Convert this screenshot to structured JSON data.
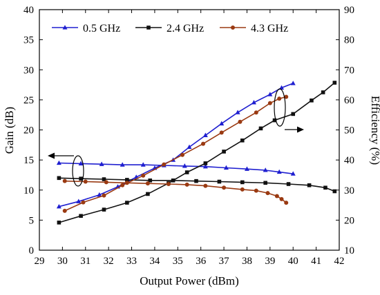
{
  "chart_data": {
    "type": "line",
    "xlabel": "Output Power (dBm)",
    "ylabel_left": "Gain (dB)",
    "ylabel_right": "Efficiency (%)",
    "xlim": [
      29,
      42
    ],
    "ylim_left": [
      0,
      40
    ],
    "ylim_right": [
      10,
      90
    ],
    "x_ticks": [
      "29",
      "30",
      "31",
      "32",
      "33",
      "34",
      "35",
      "36",
      "37",
      "38",
      "39",
      "40",
      "41",
      "42"
    ],
    "y_ticks_left": [
      "0",
      "5",
      "10",
      "15",
      "20",
      "25",
      "30",
      "35",
      "40"
    ],
    "y_ticks_right": [
      "10",
      "20",
      "30",
      "40",
      "50",
      "60",
      "70",
      "80",
      "90"
    ],
    "legend_position": "top",
    "grid": false,
    "series": [
      {
        "name": "0.5 GHz",
        "metric": "gain",
        "axis": "left",
        "color": "#1f1fd0",
        "marker": "triangle",
        "x": [
          29.85,
          30.8,
          31.7,
          32.6,
          33.5,
          34.4,
          35.3,
          36.2,
          37.1,
          38.0,
          38.8,
          39.4,
          40.0
        ],
        "y": [
          14.5,
          14.4,
          14.3,
          14.2,
          14.2,
          14.1,
          14.0,
          13.9,
          13.7,
          13.5,
          13.3,
          13.0,
          12.7
        ]
      },
      {
        "name": "0.5 GHz",
        "metric": "efficiency",
        "axis": "right",
        "color": "#1f1fd0",
        "marker": "triangle",
        "x": [
          29.85,
          30.7,
          31.6,
          32.4,
          33.2,
          34.0,
          34.8,
          35.5,
          36.2,
          36.9,
          37.6,
          38.3,
          39.0,
          39.5,
          40.0
        ],
        "y": [
          24.5,
          26.2,
          28.4,
          31.1,
          34.3,
          37.3,
          40.0,
          44.3,
          48.2,
          52.1,
          55.8,
          59.1,
          61.8,
          64.0,
          65.5
        ]
      },
      {
        "name": "2.4 GHz",
        "metric": "gain",
        "axis": "left",
        "color": "#111111",
        "marker": "square",
        "x": [
          29.85,
          30.8,
          31.8,
          32.8,
          33.8,
          34.8,
          35.8,
          36.8,
          37.8,
          38.8,
          39.8,
          40.7,
          41.4,
          41.8
        ],
        "y": [
          12.0,
          11.9,
          11.8,
          11.7,
          11.6,
          11.6,
          11.5,
          11.4,
          11.3,
          11.2,
          11.0,
          10.8,
          10.4,
          9.8
        ]
      },
      {
        "name": "2.4 GHz",
        "metric": "efficiency",
        "axis": "right",
        "color": "#111111",
        "marker": "square",
        "x": [
          29.85,
          30.8,
          31.8,
          32.8,
          33.7,
          34.6,
          35.4,
          36.2,
          37.0,
          37.8,
          38.6,
          39.2,
          40.0,
          40.8,
          41.3,
          41.8
        ],
        "y": [
          19.2,
          21.4,
          23.5,
          25.8,
          28.7,
          32.3,
          35.9,
          38.9,
          42.8,
          46.5,
          50.5,
          53.2,
          55.3,
          59.8,
          62.5,
          65.7
        ]
      },
      {
        "name": "4.3 GHz",
        "metric": "gain",
        "axis": "left",
        "color": "#9a3a12",
        "marker": "circle",
        "x": [
          30.1,
          31.0,
          31.9,
          32.8,
          33.7,
          34.6,
          35.4,
          36.2,
          37.0,
          37.8,
          38.4,
          38.9,
          39.3,
          39.5,
          39.7
        ],
        "y": [
          11.5,
          11.4,
          11.3,
          11.2,
          11.1,
          11.0,
          10.9,
          10.7,
          10.4,
          10.1,
          9.9,
          9.5,
          9.0,
          8.5,
          7.9
        ]
      },
      {
        "name": "4.3 GHz",
        "metric": "efficiency",
        "axis": "right",
        "color": "#9a3a12",
        "marker": "circle",
        "x": [
          30.1,
          30.9,
          31.8,
          32.6,
          33.5,
          34.4,
          35.2,
          36.1,
          36.9,
          37.7,
          38.4,
          39.0,
          39.4,
          39.7
        ],
        "y": [
          23.1,
          25.9,
          28.2,
          31.6,
          34.8,
          38.5,
          41.7,
          45.4,
          49.1,
          52.7,
          55.8,
          58.9,
          60.4,
          61.0
        ]
      }
    ]
  }
}
